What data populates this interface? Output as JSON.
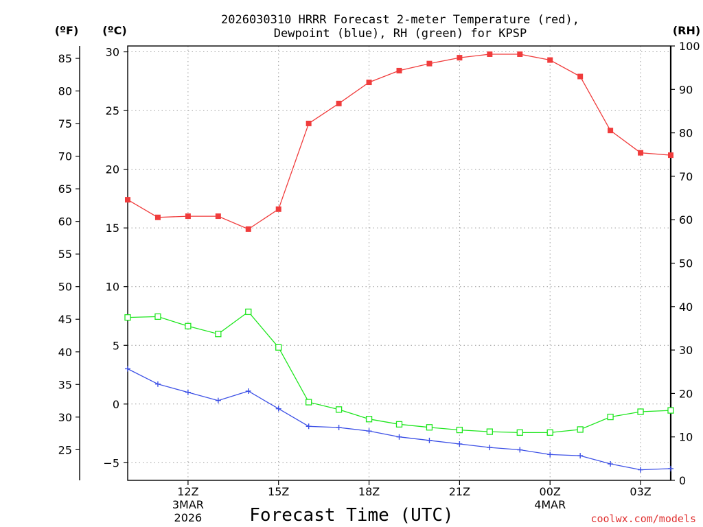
{
  "chart_data": {
    "type": "line",
    "title_line1": "2026030310 HRRR Forecast 2-meter Temperature (red),",
    "title_line2": "Dewpoint (blue), RH (green) for KPSP",
    "xlabel": "Forecast Time (UTC)",
    "credit": "coolwx.com/models",
    "units": {
      "fahrenheit": "(ºF)",
      "celsius": "(ºC)",
      "rh": "(RH)"
    },
    "x_hours": [
      10,
      11,
      12,
      13,
      14,
      15,
      16,
      17,
      18,
      19,
      20,
      21,
      22,
      23,
      24,
      25,
      26,
      27,
      28
    ],
    "x_range": [
      10,
      28
    ],
    "x_ticks": [
      {
        "hour": 12,
        "lines": [
          "12Z",
          "3MAR",
          "2026"
        ]
      },
      {
        "hour": 15,
        "lines": [
          "15Z"
        ]
      },
      {
        "hour": 18,
        "lines": [
          "18Z"
        ]
      },
      {
        "hour": 21,
        "lines": [
          "21Z"
        ]
      },
      {
        "hour": 24,
        "lines": [
          "00Z",
          "4MAR"
        ]
      },
      {
        "hour": 27,
        "lines": [
          "03Z"
        ]
      }
    ],
    "celsius_range": [
      -6.5,
      30.5
    ],
    "celsius_ticks": [
      30,
      25,
      20,
      15,
      10,
      5,
      0,
      -5
    ],
    "celsius_tick_labels": [
      "30",
      "25",
      "20",
      "15",
      "10",
      "5",
      "0",
      "−5"
    ],
    "fahrenheit_ticks": [
      85,
      80,
      75,
      70,
      65,
      60,
      55,
      50,
      45,
      40,
      35,
      30,
      25
    ],
    "rh_range": [
      0,
      100
    ],
    "rh_ticks": [
      100,
      90,
      80,
      70,
      60,
      50,
      40,
      30,
      20,
      10,
      0
    ],
    "series": [
      {
        "name": "Temperature",
        "color": "#f03c3c",
        "axis": "celsius",
        "marker": "filled-square",
        "values": [
          17.4,
          15.9,
          16.0,
          16.0,
          14.9,
          16.6,
          23.9,
          25.6,
          27.4,
          28.4,
          29.0,
          29.5,
          29.8,
          29.8,
          29.3,
          27.9,
          23.3,
          21.4,
          21.2
        ]
      },
      {
        "name": "Dewpoint",
        "color": "#3c50e6",
        "axis": "celsius",
        "marker": "plus",
        "values": [
          3.0,
          1.7,
          1.0,
          0.3,
          1.1,
          -0.4,
          -1.9,
          -2.0,
          -2.3,
          -2.8,
          -3.1,
          -3.4,
          -3.7,
          -3.9,
          -4.3,
          -4.4,
          -5.1,
          -5.6,
          -5.5
        ]
      },
      {
        "name": "Relative Humidity",
        "color": "#1ee61e",
        "axis": "rh",
        "marker": "open-square",
        "values": [
          37.5,
          37.7,
          35.5,
          33.7,
          38.8,
          30.6,
          18.0,
          16.3,
          14.1,
          12.9,
          12.2,
          11.6,
          11.2,
          11.0,
          11.0,
          11.7,
          14.6,
          15.8,
          16.1
        ]
      }
    ]
  }
}
